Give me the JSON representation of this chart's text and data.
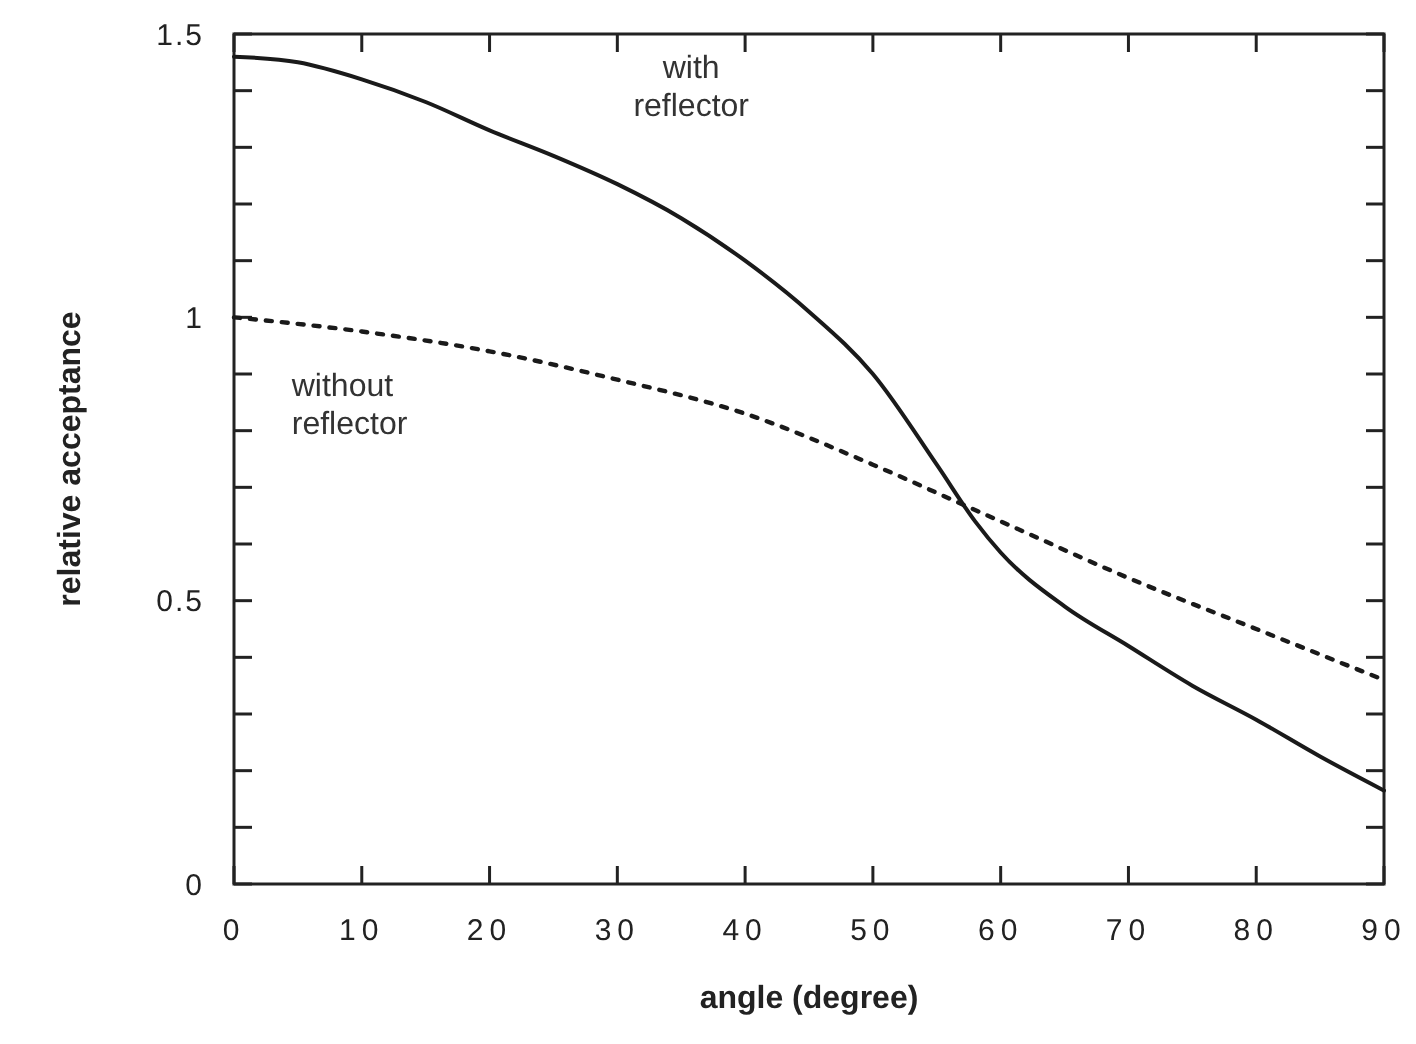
{
  "chart_data": {
    "type": "line",
    "xlabel": "angle  (degree)",
    "ylabel": "relative  acceptance",
    "x": [
      0,
      5,
      10,
      15,
      20,
      25,
      30,
      35,
      40,
      45,
      50,
      55,
      58,
      60,
      65,
      70,
      75,
      80,
      85,
      90
    ],
    "series": [
      {
        "name": "with reflector",
        "color": "#1a1a1a",
        "line_style": "solid",
        "values": [
          1.46,
          1.45,
          1.42,
          1.38,
          1.33,
          1.285,
          1.235,
          1.175,
          1.1,
          1.01,
          0.9,
          0.74,
          0.64,
          0.585,
          0.49,
          0.42,
          0.35,
          0.29,
          0.225,
          0.165
        ]
      },
      {
        "name": "without reflector",
        "color": "#1a1a1a",
        "line_style": "dotted",
        "x": [
          0,
          10,
          20,
          30,
          40,
          50,
          57.5,
          60,
          70,
          80,
          90
        ],
        "values": [
          1.0,
          0.975,
          0.94,
          0.89,
          0.83,
          0.74,
          0.665,
          0.64,
          0.54,
          0.45,
          0.36
        ]
      }
    ],
    "xlim": [
      0,
      90
    ],
    "xticks": [
      0,
      10,
      20,
      30,
      40,
      50,
      60,
      70,
      80,
      90
    ],
    "ylim": [
      0,
      1.5
    ],
    "yticks": [
      0,
      {
        "value": 0.1,
        "label": null
      },
      {
        "value": 0.2,
        "label": null
      },
      {
        "value": 0.3,
        "label": null
      },
      {
        "value": 0.4,
        "label": null
      },
      {
        "value": 0.5,
        "label": "0.5"
      },
      {
        "value": 0.6,
        "label": null
      },
      {
        "value": 0.7,
        "label": null
      },
      {
        "value": 0.8,
        "label": null
      },
      {
        "value": 0.9,
        "label": null
      },
      1,
      {
        "value": 1.1,
        "label": null
      },
      {
        "value": 1.2,
        "label": null
      },
      {
        "value": 1.3,
        "label": null
      },
      {
        "value": 1.4,
        "label": null
      },
      1.5
    ],
    "grid": false
  }
}
